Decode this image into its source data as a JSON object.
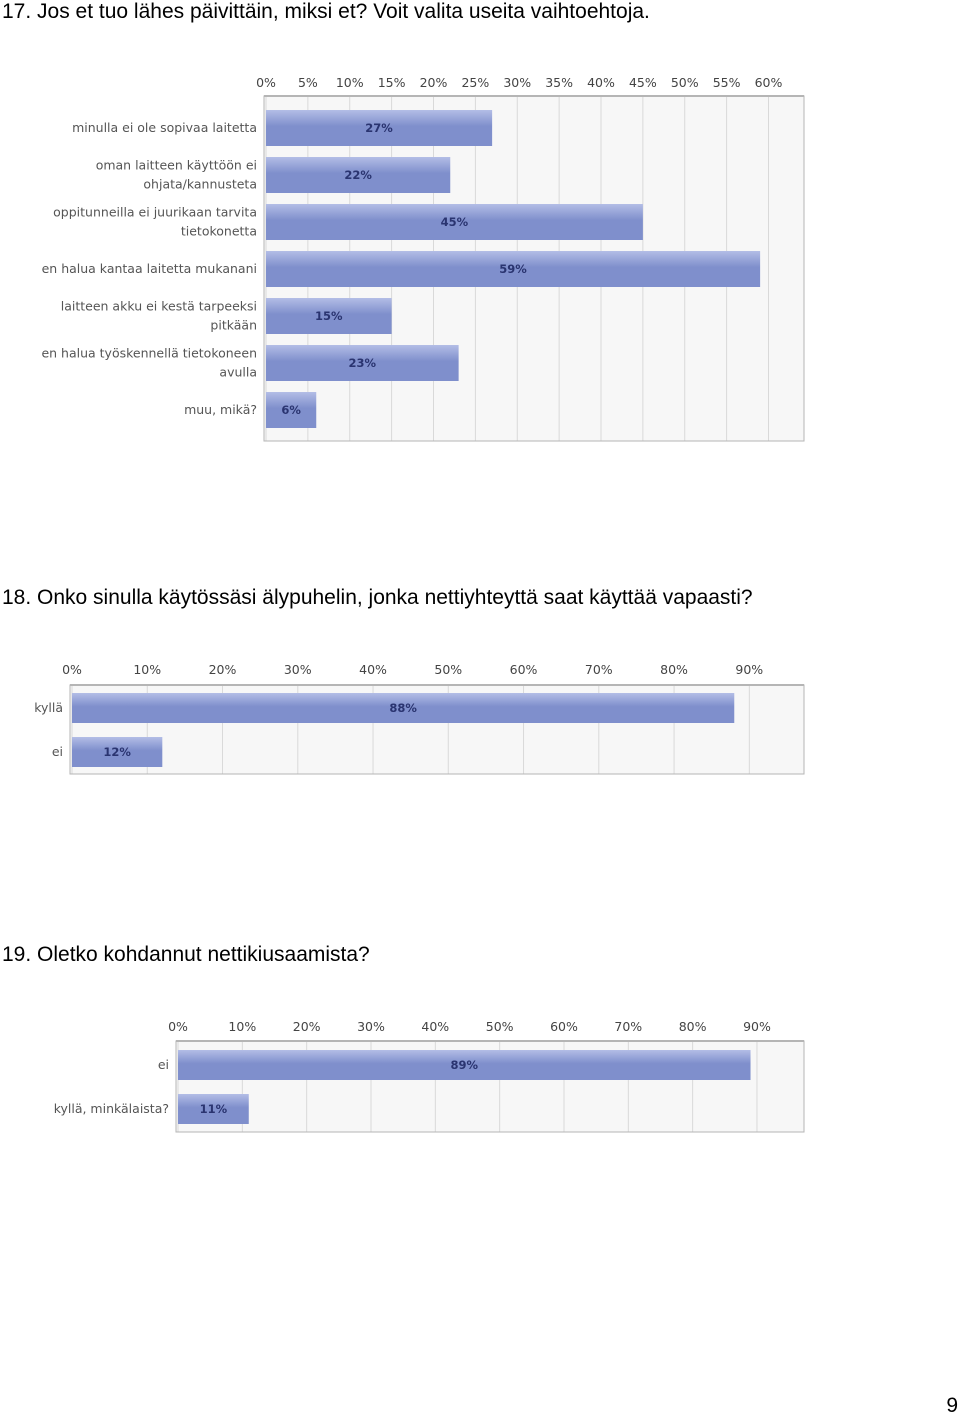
{
  "questions": {
    "q17": "17. Jos et tuo lähes päivittäin, miksi et? Voit valita useita vaihtoehtoja.",
    "q18": "18. Onko sinulla käytössäsi älypuhelin, jonka nettiyhteyttä saat käyttää vapaasti?",
    "q19": "19. Oletko kohdannut nettikiusaamista?"
  },
  "page_number": "9",
  "colors": {
    "bar": "#7f8fcc",
    "bar_highlight": "#b3bde6",
    "plot_bg": "#f7f7f7",
    "grid": "#d9d9d9",
    "frame": "#b5b5b5"
  },
  "chart_data": [
    {
      "type": "bar",
      "orientation": "horizontal",
      "categories": [
        [
          "minulla ei ole sopivaa laitetta"
        ],
        [
          "oman laitteen käyttöön ei",
          "ohjata/kannusteta"
        ],
        [
          "oppitunneilla ei juurikaan tarvita",
          "tietokonetta"
        ],
        [
          "en halua kantaa laitetta mukanani"
        ],
        [
          "laitteen akku ei kestä tarpeeksi",
          "pitkään"
        ],
        [
          "en halua työskennellä tietokoneen",
          "avulla"
        ],
        [
          "muu, mikä?"
        ]
      ],
      "values": [
        27,
        22,
        45,
        59,
        15,
        23,
        6
      ],
      "value_labels": [
        "27%",
        "22%",
        "45%",
        "59%",
        "15%",
        "23%",
        "6%"
      ],
      "xlim": [
        0,
        64
      ],
      "ticks": [
        0,
        5,
        10,
        15,
        20,
        25,
        30,
        35,
        40,
        45,
        50,
        55,
        60
      ],
      "tick_labels": [
        "0%",
        "5%",
        "10%",
        "15%",
        "20%",
        "25%",
        "30%",
        "35%",
        "40%",
        "45%",
        "50%",
        "55%",
        "60%"
      ],
      "grid": true
    },
    {
      "type": "bar",
      "orientation": "horizontal",
      "categories": [
        [
          "kyllä"
        ],
        [
          "ei"
        ]
      ],
      "values": [
        88,
        12
      ],
      "value_labels": [
        "88%",
        "12%"
      ],
      "xlim": [
        0,
        97
      ],
      "ticks": [
        0,
        10,
        20,
        30,
        40,
        50,
        60,
        70,
        80,
        90
      ],
      "tick_labels": [
        "0%",
        "10%",
        "20%",
        "30%",
        "40%",
        "50%",
        "60%",
        "70%",
        "80%",
        "90%"
      ],
      "grid": true
    },
    {
      "type": "bar",
      "orientation": "horizontal",
      "categories": [
        [
          "ei"
        ],
        [
          "kyllä, minkälaista?"
        ]
      ],
      "values": [
        89,
        11
      ],
      "value_labels": [
        "89%",
        "11%"
      ],
      "xlim": [
        0,
        97
      ],
      "ticks": [
        0,
        10,
        20,
        30,
        40,
        50,
        60,
        70,
        80,
        90
      ],
      "tick_labels": [
        "0%",
        "10%",
        "20%",
        "30%",
        "40%",
        "50%",
        "60%",
        "70%",
        "80%",
        "90%"
      ],
      "grid": true
    }
  ]
}
